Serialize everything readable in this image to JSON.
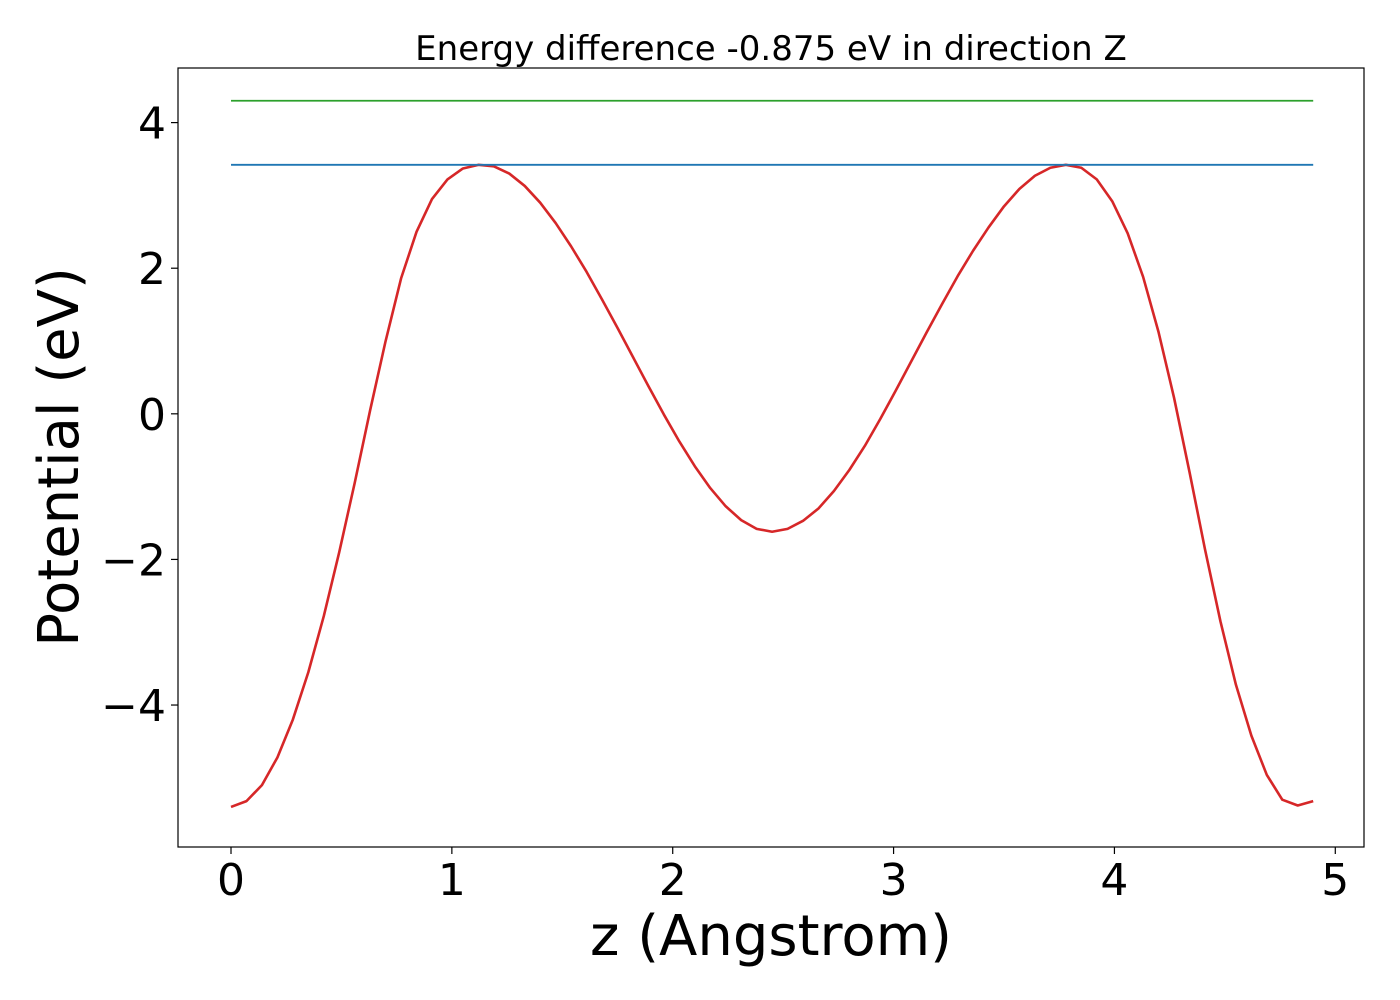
{
  "chart_data": {
    "type": "line",
    "title": "Energy difference -0.875 eV in direction Z",
    "xlabel": "z (Angstrom)",
    "ylabel": "Potential (eV)",
    "xlim": [
      -0.24,
      5.13
    ],
    "ylim": [
      -5.95,
      4.75
    ],
    "xticks": [
      0,
      1,
      2,
      3,
      4,
      5
    ],
    "xtick_labels": [
      "0",
      "1",
      "2",
      "3",
      "4",
      "5"
    ],
    "yticks": [
      -4,
      -2,
      0,
      2,
      4
    ],
    "ytick_labels": [
      "−4",
      "−2",
      "0",
      "2",
      "4"
    ],
    "grid": false,
    "legend": "none",
    "series": [
      {
        "color": "#d62728",
        "x": [
          0.0,
          0.07,
          0.14,
          0.21,
          0.28,
          0.35,
          0.42,
          0.49,
          0.56,
          0.63,
          0.7,
          0.77,
          0.84,
          0.91,
          0.98,
          1.05,
          1.12,
          1.19,
          1.26,
          1.33,
          1.4,
          1.47,
          1.54,
          1.61,
          1.68,
          1.75,
          1.82,
          1.89,
          1.96,
          2.03,
          2.1,
          2.17,
          2.24,
          2.31,
          2.38,
          2.45,
          2.52,
          2.59,
          2.66,
          2.73,
          2.8,
          2.87,
          2.94,
          3.01,
          3.08,
          3.15,
          3.22,
          3.29,
          3.36,
          3.43,
          3.5,
          3.57,
          3.64,
          3.71,
          3.78,
          3.85,
          3.92,
          3.99,
          4.06,
          4.13,
          4.2,
          4.27,
          4.34,
          4.41,
          4.48,
          4.55,
          4.62,
          4.69,
          4.76,
          4.83,
          4.9
        ],
        "y": [
          -5.4,
          -5.32,
          -5.1,
          -4.72,
          -4.2,
          -3.55,
          -2.78,
          -1.9,
          -0.95,
          0.05,
          1.0,
          1.86,
          2.5,
          2.95,
          3.22,
          3.37,
          3.42,
          3.4,
          3.3,
          3.13,
          2.9,
          2.62,
          2.3,
          1.95,
          1.57,
          1.18,
          0.78,
          0.38,
          -0.01,
          -0.38,
          -0.72,
          -1.02,
          -1.27,
          -1.46,
          -1.58,
          -1.62,
          -1.58,
          -1.47,
          -1.3,
          -1.06,
          -0.77,
          -0.44,
          -0.07,
          0.32,
          0.72,
          1.12,
          1.51,
          1.89,
          2.24,
          2.56,
          2.85,
          3.09,
          3.27,
          3.38,
          3.42,
          3.38,
          3.22,
          2.92,
          2.48,
          1.88,
          1.12,
          0.22,
          -0.8,
          -1.86,
          -2.85,
          -3.72,
          -4.42,
          -4.96,
          -5.3,
          -5.38,
          -5.32
        ]
      },
      {
        "color": "#1f77b4",
        "x": [
          0.0,
          4.9
        ],
        "y": [
          3.42,
          3.42
        ]
      },
      {
        "color": "#2ca02c",
        "x": [
          0.0,
          4.9
        ],
        "y": [
          4.3,
          4.3
        ]
      }
    ]
  }
}
